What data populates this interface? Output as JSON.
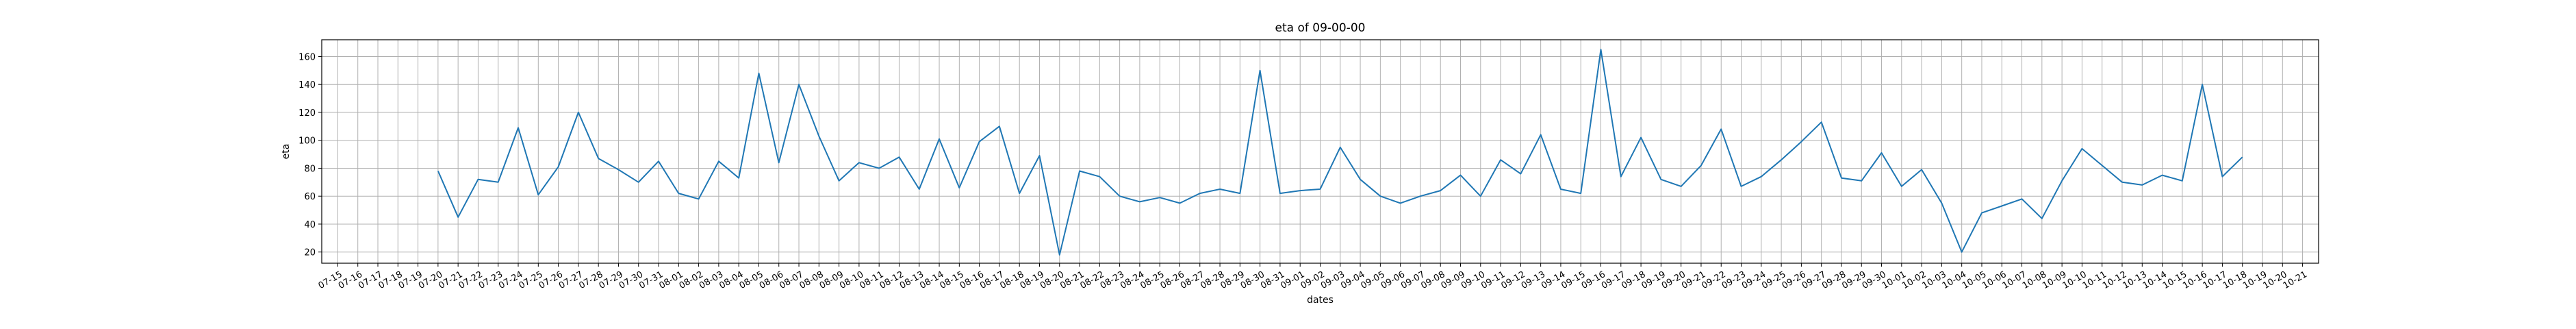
{
  "chart_data": {
    "type": "line",
    "title": "eta of 09-00-00",
    "xlabel": "dates",
    "ylabel": "eta",
    "grid": true,
    "ylim": [
      12,
      172
    ],
    "yticks": [
      20,
      40,
      60,
      80,
      100,
      120,
      140,
      160
    ],
    "x_categories": [
      "07-15",
      "07-16",
      "07-17",
      "07-18",
      "07-19",
      "07-20",
      "07-21",
      "07-22",
      "07-23",
      "07-24",
      "07-25",
      "07-26",
      "07-27",
      "07-28",
      "07-29",
      "07-30",
      "07-31",
      "08-01",
      "08-02",
      "08-03",
      "08-04",
      "08-05",
      "08-06",
      "08-07",
      "08-08",
      "08-09",
      "08-10",
      "08-11",
      "08-12",
      "08-13",
      "08-14",
      "08-15",
      "08-16",
      "08-17",
      "08-18",
      "08-19",
      "08-20",
      "08-21",
      "08-22",
      "08-23",
      "08-24",
      "08-25",
      "08-26",
      "08-27",
      "08-28",
      "08-29",
      "08-30",
      "08-31",
      "09-01",
      "09-02",
      "09-03",
      "09-04",
      "09-05",
      "09-06",
      "09-07",
      "09-08",
      "09-09",
      "09-10",
      "09-11",
      "09-12",
      "09-13",
      "09-14",
      "09-15",
      "09-16",
      "09-17",
      "09-18",
      "09-19",
      "09-20",
      "09-21",
      "09-22",
      "09-23",
      "09-24",
      "09-25",
      "09-26",
      "09-27",
      "09-28",
      "09-29",
      "09-30",
      "10-01",
      "10-02",
      "10-03",
      "10-04",
      "10-05",
      "10-06",
      "10-07",
      "10-08",
      "10-09",
      "10-10",
      "10-11",
      "10-12",
      "10-13",
      "10-14",
      "10-15",
      "10-16",
      "10-17",
      "10-18",
      "10-19",
      "10-20",
      "10-21"
    ],
    "series": [
      {
        "color": "#1f77b4",
        "points": [
          [
            "07-20",
            78
          ],
          [
            "07-21",
            45
          ],
          [
            "07-22",
            72
          ],
          [
            "07-23",
            70
          ],
          [
            "07-24",
            109
          ],
          [
            "07-25",
            61
          ],
          [
            "07-26",
            81
          ],
          [
            "07-27",
            120
          ],
          [
            "07-28",
            87
          ],
          [
            "07-29",
            79
          ],
          [
            "07-30",
            70
          ],
          [
            "07-31",
            85
          ],
          [
            "08-01",
            62
          ],
          [
            "08-02",
            58
          ],
          [
            "08-03",
            85
          ],
          [
            "08-04",
            73
          ],
          [
            "08-05",
            148
          ],
          [
            "08-06",
            84
          ],
          [
            "08-07",
            140
          ],
          [
            "08-08",
            103
          ],
          [
            "08-09",
            71
          ],
          [
            "08-10",
            84
          ],
          [
            "08-11",
            80
          ],
          [
            "08-12",
            88
          ],
          [
            "08-13",
            65
          ],
          [
            "08-14",
            101
          ],
          [
            "08-15",
            66
          ],
          [
            "08-16",
            99
          ],
          [
            "08-17",
            110
          ],
          [
            "08-18",
            62
          ],
          [
            "08-19",
            89
          ],
          [
            "08-20",
            18
          ],
          [
            "08-21",
            78
          ],
          [
            "08-22",
            74
          ],
          [
            "08-23",
            60
          ],
          [
            "08-24",
            56
          ],
          [
            "08-25",
            59
          ],
          [
            "08-26",
            55
          ],
          [
            "08-27",
            62
          ],
          [
            "08-28",
            65
          ],
          [
            "08-29",
            62
          ],
          [
            "08-30",
            150
          ],
          [
            "08-31",
            62
          ],
          [
            "09-01",
            64
          ],
          [
            "09-02",
            65
          ],
          [
            "09-03",
            95
          ],
          [
            "09-04",
            72
          ],
          [
            "09-05",
            60
          ],
          [
            "09-06",
            55
          ],
          [
            "09-07",
            60
          ],
          [
            "09-08",
            64
          ],
          [
            "09-09",
            75
          ],
          [
            "09-10",
            60
          ],
          [
            "09-11",
            86
          ],
          [
            "09-12",
            76
          ],
          [
            "09-13",
            104
          ],
          [
            "09-14",
            65
          ],
          [
            "09-15",
            62
          ],
          [
            "09-16",
            165
          ],
          [
            "09-17",
            74
          ],
          [
            "09-18",
            102
          ],
          [
            "09-19",
            72
          ],
          [
            "09-20",
            67
          ],
          [
            "09-21",
            82
          ],
          [
            "09-22",
            108
          ],
          [
            "09-23",
            67
          ],
          [
            "09-24",
            74
          ],
          [
            "09-25",
            86
          ],
          [
            "09-26",
            99
          ],
          [
            "09-27",
            113
          ],
          [
            "09-28",
            73
          ],
          [
            "09-29",
            71
          ],
          [
            "09-30",
            91
          ],
          [
            "10-01",
            67
          ],
          [
            "10-02",
            79
          ],
          [
            "10-03",
            55
          ],
          [
            "10-04",
            20
          ],
          [
            "10-05",
            48
          ],
          [
            "10-06",
            53
          ],
          [
            "10-07",
            58
          ],
          [
            "10-08",
            44
          ],
          [
            "10-09",
            71
          ],
          [
            "10-10",
            94
          ],
          [
            "10-11",
            82
          ],
          [
            "10-12",
            70
          ],
          [
            "10-13",
            68
          ],
          [
            "10-14",
            75
          ],
          [
            "10-15",
            71
          ],
          [
            "10-16",
            140
          ],
          [
            "10-17",
            74
          ],
          [
            "10-18",
            88
          ]
        ]
      }
    ]
  }
}
